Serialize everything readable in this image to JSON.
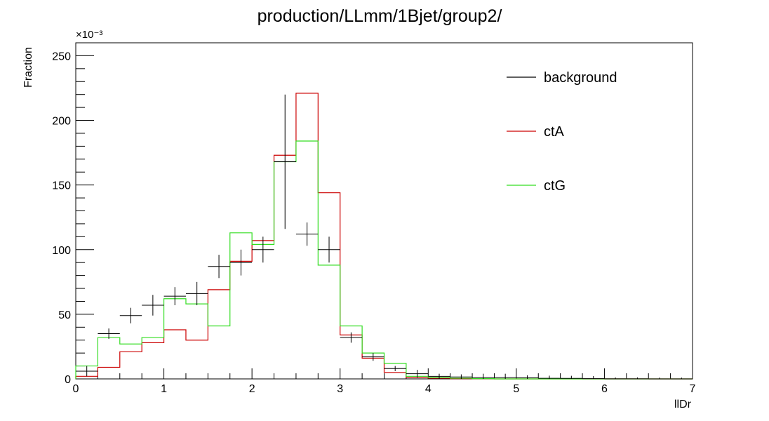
{
  "chart_data": {
    "type": "histogram",
    "title": "production/LLmm/1Bjet/group2/",
    "xlabel": "llDr",
    "ylabel": "Fraction",
    "y_multiplier": "×10⁻³",
    "xlim": [
      0,
      7
    ],
    "ylim": [
      0,
      0.26
    ],
    "x_ticks": [
      0,
      1,
      2,
      3,
      4,
      5,
      6,
      7
    ],
    "y_ticks": [
      0,
      50,
      100,
      150,
      200,
      250
    ],
    "bin_edges": [
      0,
      0.25,
      0.5,
      0.75,
      1.0,
      1.25,
      1.5,
      1.75,
      2.0,
      2.25,
      2.5,
      2.75,
      3.0,
      3.25,
      3.5,
      3.75,
      4.0,
      4.25,
      4.5,
      4.75,
      5.0,
      5.25,
      5.5,
      5.75,
      6.0,
      6.25,
      6.5,
      6.75,
      7.0
    ],
    "legend": {
      "placement": "top-right"
    },
    "series": [
      {
        "name": "background",
        "style": "points-with-errors",
        "color": "#000000",
        "values": [
          0.006,
          0.035,
          0.049,
          0.057,
          0.064,
          0.066,
          0.087,
          0.09,
          0.1,
          0.168,
          0.112,
          0.1,
          0.032,
          0.017,
          0.008,
          0.004,
          0.002,
          0.0015,
          0.001,
          0.001,
          0.0008,
          0.0005,
          0.0004,
          0.0002,
          0.0001,
          0.0001,
          0.0,
          0.0
        ],
        "errors": [
          0.004,
          0.004,
          0.006,
          0.008,
          0.007,
          0.009,
          0.009,
          0.01,
          0.01,
          0.052,
          0.009,
          0.01,
          0.004,
          0.003,
          0.002,
          0.003,
          0.002,
          0.002,
          0.003,
          0.003,
          0.002,
          0.002,
          0.002,
          0.002,
          0.001,
          0.001,
          0.001,
          0.001
        ]
      },
      {
        "name": "ctA",
        "style": "step",
        "color": "#cc0000",
        "values": [
          0.002,
          0.009,
          0.021,
          0.028,
          0.038,
          0.03,
          0.069,
          0.091,
          0.107,
          0.173,
          0.221,
          0.144,
          0.034,
          0.016,
          0.005,
          0.001,
          0.0005,
          0.0002,
          0.0001,
          0.0,
          0.0,
          0.0,
          0.0,
          0.0,
          0.0,
          0.0,
          0.0,
          0.0
        ]
      },
      {
        "name": "ctG",
        "style": "step",
        "color": "#33dd22",
        "values": [
          0.01,
          0.032,
          0.027,
          0.032,
          0.062,
          0.058,
          0.041,
          0.113,
          0.104,
          0.168,
          0.184,
          0.088,
          0.041,
          0.02,
          0.012,
          0.002,
          0.001,
          0.0005,
          0.0002,
          0.0,
          0.0,
          0.0,
          0.0,
          0.0,
          0.0,
          0.0,
          0.0,
          0.0
        ]
      }
    ]
  }
}
